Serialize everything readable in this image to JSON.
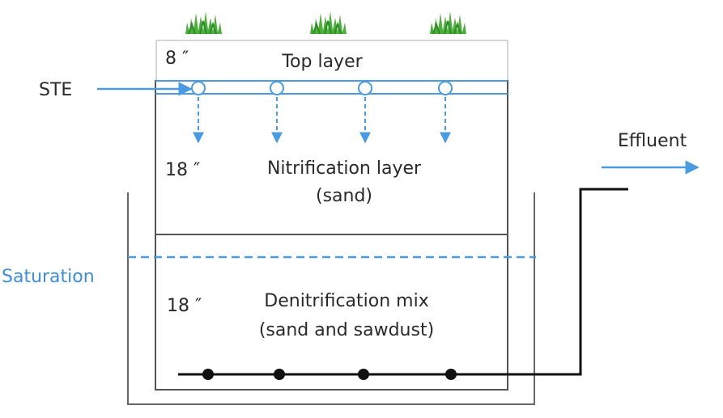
{
  "labels": {
    "inflow": "STE",
    "outflow": "Effluent",
    "saturation": "Saturation"
  },
  "layers": [
    {
      "name": "Top layer",
      "depth": "8 ″"
    },
    {
      "name": "Nitrification layer",
      "detail": "(sand)",
      "depth": "18 ″"
    },
    {
      "name": "Denitrification mix",
      "detail": "(sand and sawdust)",
      "depth": "18 ″"
    }
  ],
  "icons": [
    "grass-icon",
    "grass-icon",
    "grass-icon"
  ],
  "colors": {
    "flow": "#4a9be0",
    "outline": "#222222",
    "box": "#555555",
    "grass": "#4caf3a"
  }
}
